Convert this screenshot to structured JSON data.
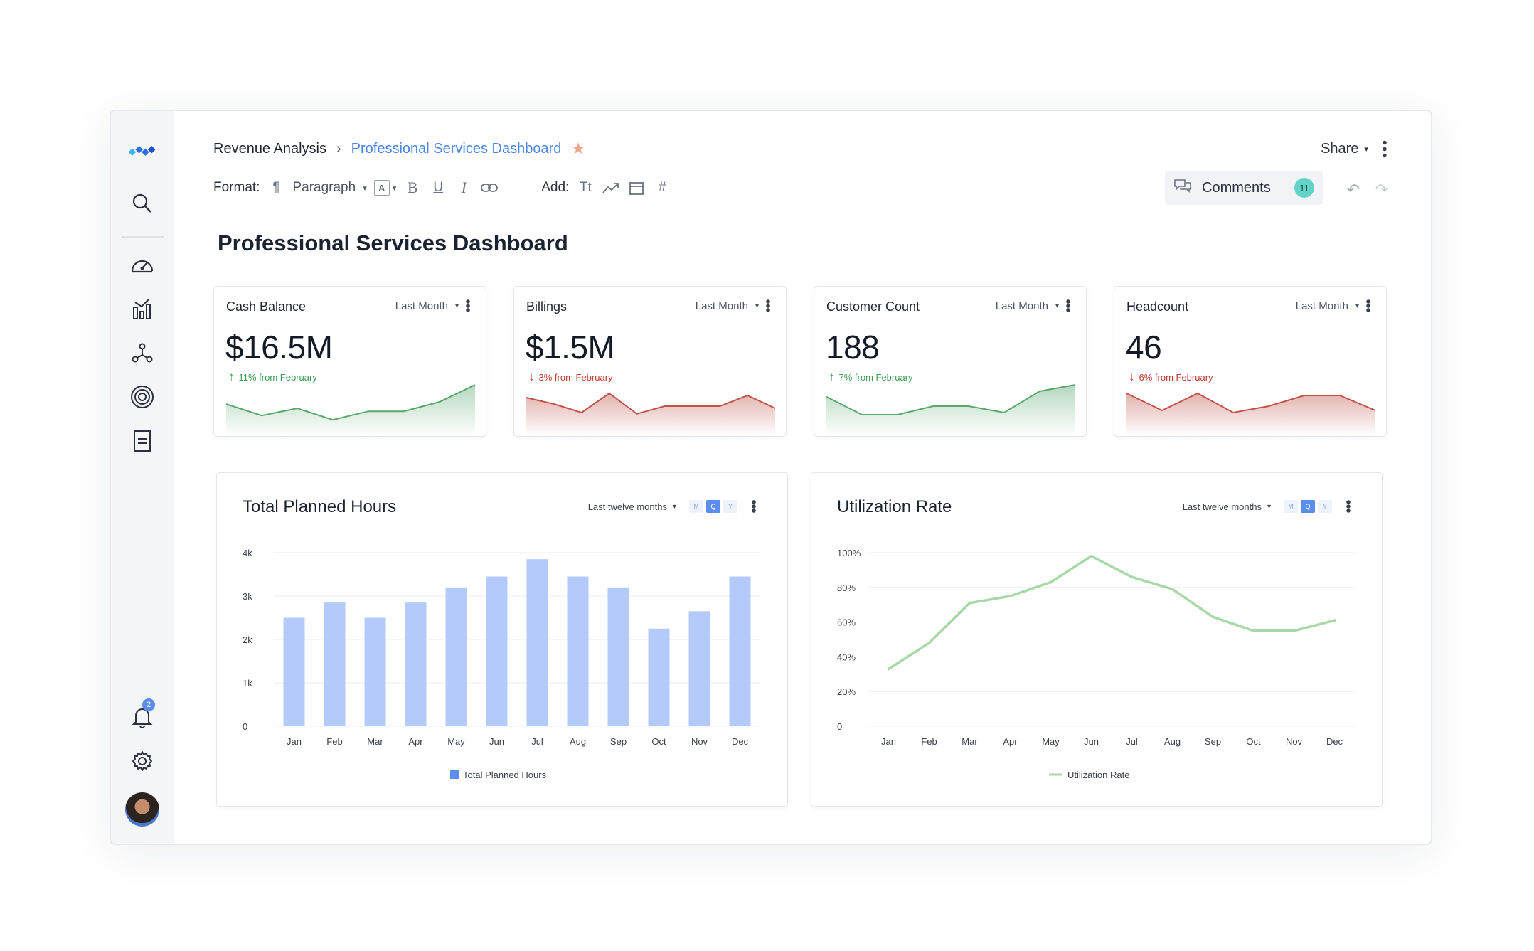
{
  "nav": {
    "icons": [
      "logo-icon",
      "search-icon",
      "gauge-icon",
      "chart-icon",
      "network-icon",
      "target-icon",
      "document-icon",
      "bell-icon",
      "gear-icon"
    ],
    "notification_count": "2"
  },
  "header": {
    "breadcrumb_parent": "Revenue Analysis",
    "breadcrumb_current": "Professional Services Dashboard",
    "share_label": "Share"
  },
  "toolbar": {
    "format_label": "Format:",
    "paragraph_label": "Paragraph",
    "font_box": "A",
    "bold": "B",
    "underline": "U",
    "italic": "I",
    "add_label": "Add:",
    "text_tool": "Tt",
    "hash_tool": "#",
    "comments_label": "Comments",
    "comments_count": "11"
  },
  "page_title": "Professional Services Dashboard",
  "kpis": [
    {
      "name": "Cash Balance",
      "period": "Last Month",
      "value": "$16.5M",
      "change": "11% from February",
      "trend": "up",
      "color": "#5aa86e",
      "spark": [
        0.55,
        0.28,
        0.45,
        0.18,
        0.38,
        0.38,
        0.6,
        1.0
      ]
    },
    {
      "name": "Billings",
      "period": "Last Month",
      "value": "$1.5M",
      "change": "3% from February",
      "trend": "down",
      "color": "#c0534a",
      "spark": [
        0.7,
        0.55,
        0.35,
        0.8,
        0.32,
        0.5,
        0.5,
        0.5,
        0.75,
        0.45
      ]
    },
    {
      "name": "Customer Count",
      "period": "Last Month",
      "value": "188",
      "change": "7% from February",
      "trend": "up",
      "color": "#5aa86e",
      "spark": [
        0.72,
        0.3,
        0.3,
        0.5,
        0.5,
        0.35,
        0.85,
        1.0
      ]
    },
    {
      "name": "Headcount",
      "period": "Last Month",
      "value": "46",
      "change": "6% from February",
      "trend": "down",
      "color": "#c0534a",
      "spark": [
        0.8,
        0.4,
        0.8,
        0.35,
        0.5,
        0.75,
        0.75,
        0.4
      ]
    }
  ],
  "panels": {
    "hours": {
      "title": "Total Planned Hours",
      "range": "Last twelve months",
      "seg": [
        "M",
        "Q",
        "Y"
      ],
      "legend": "Total Planned Hours"
    },
    "util": {
      "title": "Utilization Rate",
      "range": "Last twelve months",
      "seg": [
        "M",
        "Q",
        "Y"
      ],
      "legend": "Utilization Rate"
    }
  },
  "chart_data": [
    {
      "type": "bar",
      "title": "Total Planned Hours",
      "categories": [
        "Jan",
        "Feb",
        "Mar",
        "Apr",
        "May",
        "Jun",
        "Jul",
        "Aug",
        "Sep",
        "Oct",
        "Nov",
        "Dec"
      ],
      "series": [
        {
          "name": "Total Planned Hours",
          "values": [
            2500,
            2850,
            2500,
            2850,
            3200,
            3450,
            3850,
            3450,
            3200,
            2250,
            2650,
            3450
          ],
          "color": "#b3cafb"
        }
      ],
      "yticks": [
        "0",
        "1k",
        "2k",
        "3k",
        "4k"
      ],
      "ylim": [
        0,
        4000
      ],
      "legend": "bottom-center",
      "grid": true
    },
    {
      "type": "line",
      "title": "Utilization Rate",
      "categories": [
        "Jan",
        "Feb",
        "Mar",
        "Apr",
        "May",
        "Jun",
        "Jul",
        "Aug",
        "Sep",
        "Oct",
        "Nov",
        "Dec"
      ],
      "series": [
        {
          "name": "Utilization Rate",
          "values": [
            33,
            48,
            71,
            75,
            83,
            98,
            86,
            79,
            63,
            55,
            55,
            61
          ],
          "color": "#a8d8a8"
        }
      ],
      "yticks": [
        "0",
        "20%",
        "40%",
        "60%",
        "80%",
        "100%"
      ],
      "ylim": [
        0,
        100
      ],
      "legend": "bottom-center",
      "grid": true
    }
  ]
}
